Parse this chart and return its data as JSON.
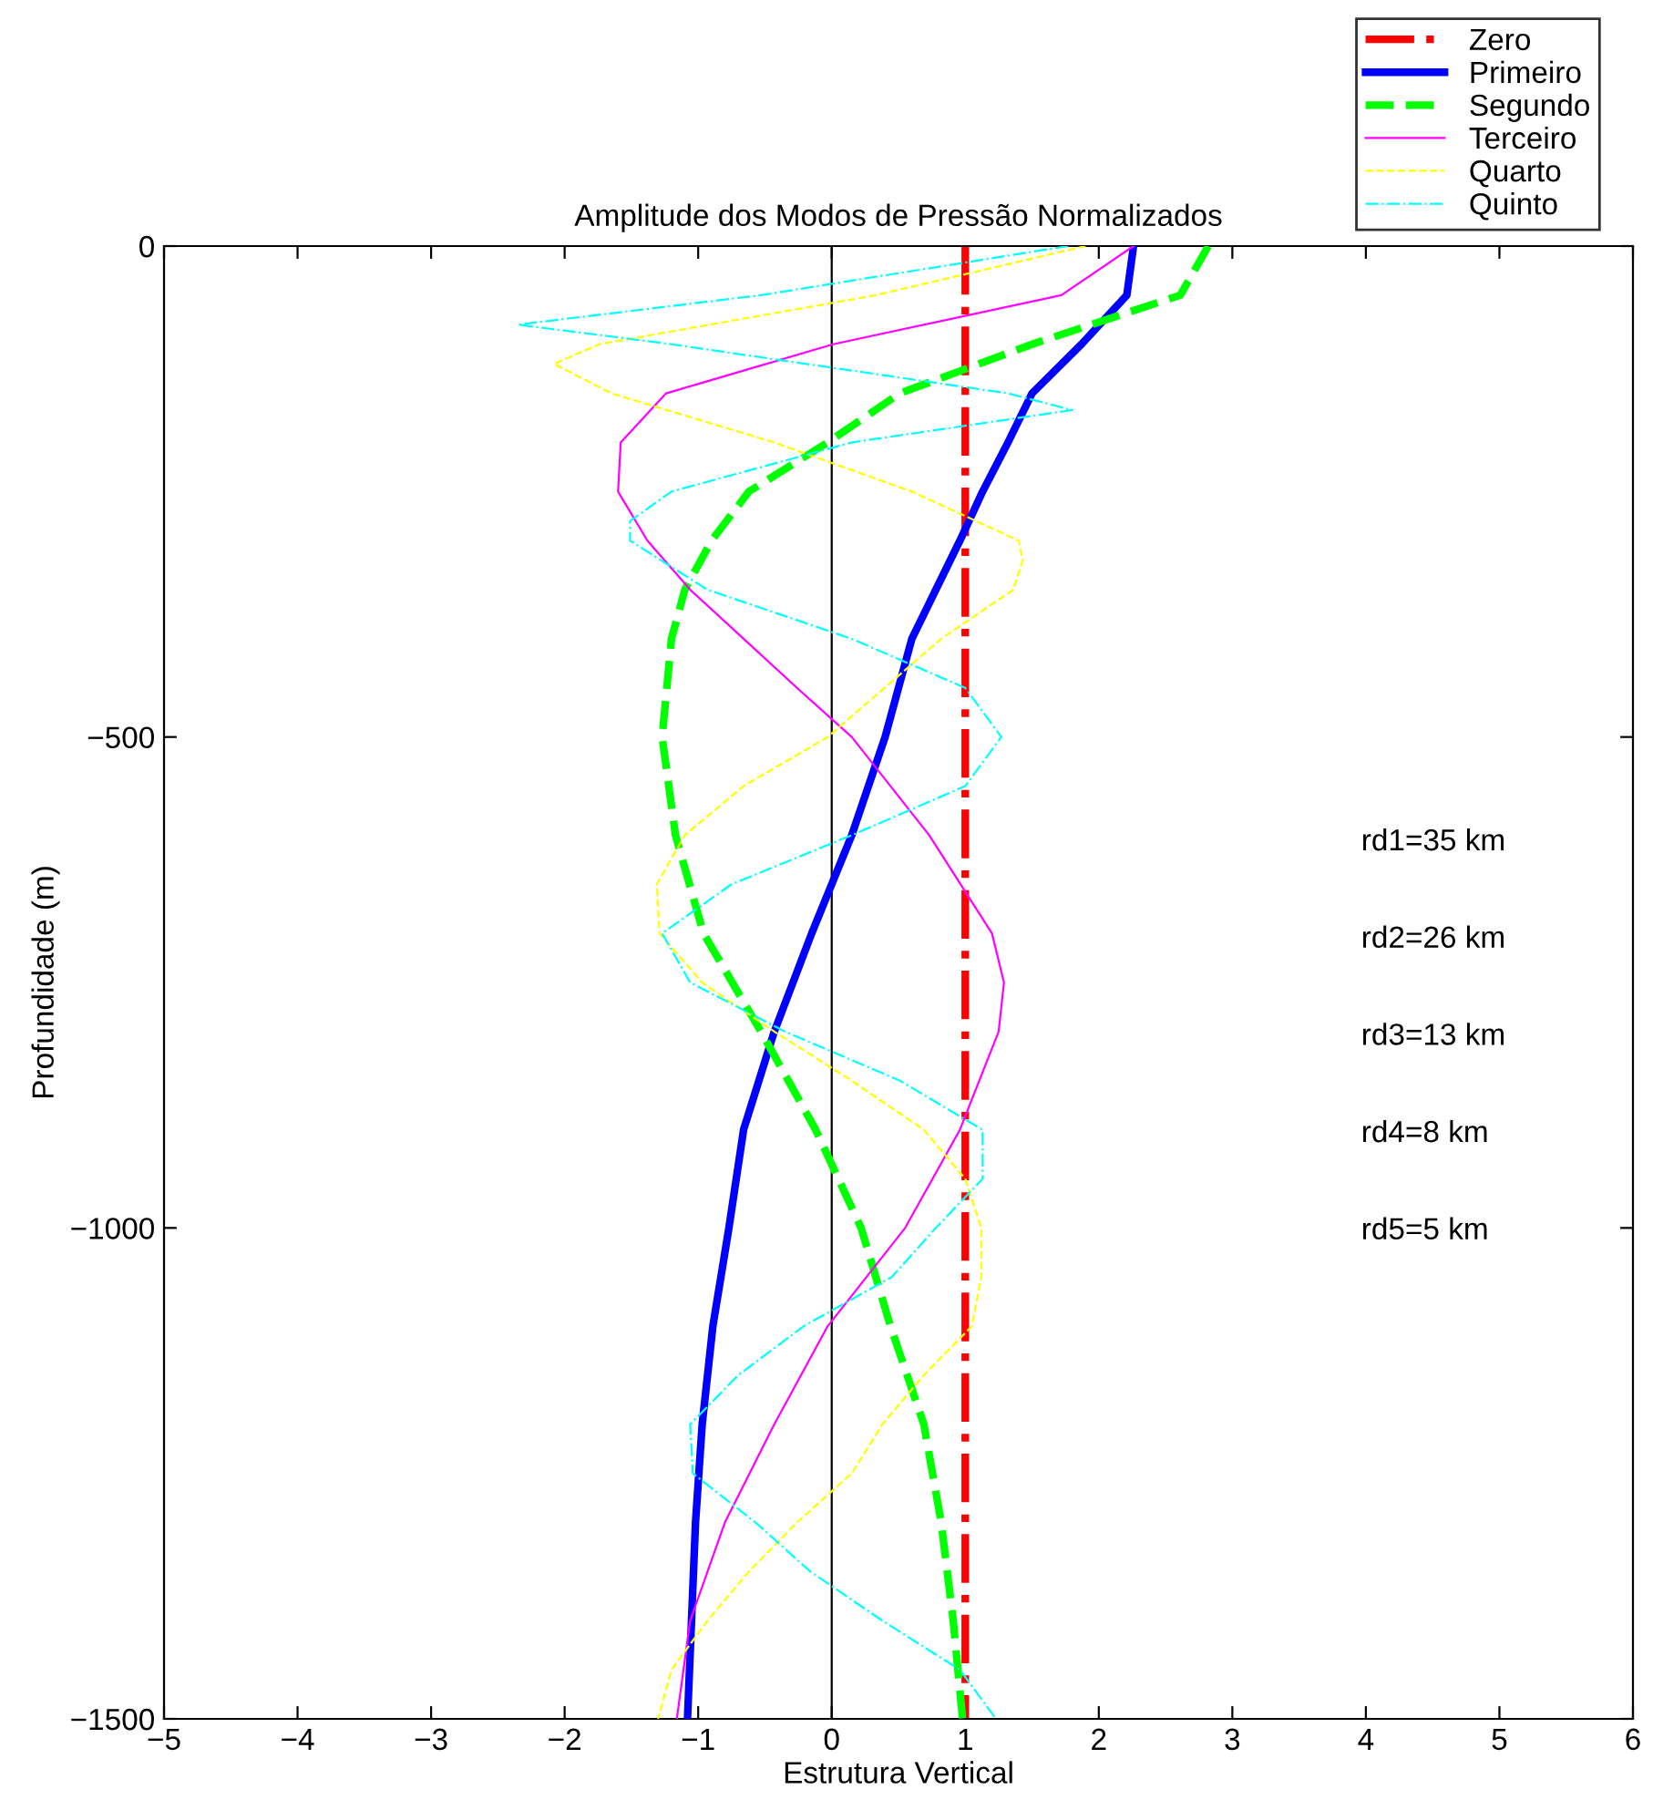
{
  "chart_data": {
    "type": "line",
    "title": "Amplitude dos Modos de Pressão Normalizados",
    "xlabel": "Estrutura Vertical",
    "ylabel": "Profundidade (m)",
    "xlim": [
      -5,
      6
    ],
    "xticks": [
      -5,
      -4,
      -3,
      -2,
      -1,
      0,
      1,
      2,
      3,
      4,
      5,
      6
    ],
    "ylim": [
      -1500,
      0
    ],
    "yticks": [
      -1500,
      -1000,
      -500,
      0
    ],
    "grid": false,
    "legend": "top right",
    "marker": "none",
    "ref_lines": [
      {
        "axis": "x",
        "value": 0,
        "color": "#000000",
        "line_style": "solid"
      }
    ],
    "annotations": [
      "rd1=35 km",
      "rd2=26 km",
      "rd3=13 km",
      "rd4=8 km",
      "rd5=5 km"
    ],
    "series": [
      {
        "name": "Zero",
        "color": "#ff0000",
        "line_style": "dashdot",
        "x": [
          1,
          1
        ],
        "values": [
          0,
          -1500
        ]
      },
      {
        "name": "Primeiro",
        "color": "#0000ff",
        "line_style": "solid",
        "x": [
          2.26,
          2.21,
          1.87,
          1.5,
          1.32,
          1.13,
          0.96,
          0.6,
          0.4,
          0.15,
          0,
          -0.15,
          -0.43,
          -0.66,
          -0.77,
          -0.89,
          -0.97,
          -1.02,
          -1.05,
          -1.08
        ],
        "values": [
          0,
          -50,
          -100,
          -150,
          -200,
          -250,
          -300,
          -400,
          -500,
          -600,
          -650,
          -700,
          -800,
          -900,
          -1000,
          -1100,
          -1200,
          -1300,
          -1400,
          -1500
        ]
      },
      {
        "name": "Segundo",
        "color": "#00ff00",
        "line_style": "dashed",
        "x": [
          2.82,
          2.61,
          1.5,
          0.51,
          -0.03,
          -0.62,
          -0.9,
          -1.1,
          -1.2,
          -1.27,
          -1.17,
          -0.96,
          -0.53,
          -0.12,
          0.22,
          0.44,
          0.69,
          0.82,
          0.91,
          0.98
        ],
        "values": [
          0,
          -50,
          -100,
          -150,
          -200,
          -250,
          -300,
          -350,
          -400,
          -500,
          -600,
          -700,
          -800,
          -900,
          -1000,
          -1100,
          -1200,
          -1300,
          -1400,
          -1500
        ]
      },
      {
        "name": "Terceiro",
        "color": "#ff00ff",
        "line_style": "solid",
        "x": [
          2.26,
          1.72,
          0.01,
          -1.24,
          -1.58,
          -1.6,
          -1.38,
          -1.06,
          -0.66,
          -0.26,
          0.15,
          0.73,
          1.2,
          1.29,
          1.25,
          0.96,
          0.55,
          -0.03,
          -0.43,
          -0.8,
          -1.06,
          -1.16
        ],
        "values": [
          0,
          -50,
          -100,
          -150,
          -200,
          -250,
          -300,
          -350,
          -400,
          -450,
          -500,
          -600,
          -700,
          -750,
          -800,
          -900,
          -1000,
          -1100,
          -1200,
          -1300,
          -1400,
          -1500
        ]
      },
      {
        "name": "Quarto",
        "color": "#ffff00",
        "line_style": "dashed",
        "x": [
          1.9,
          0.33,
          -1.74,
          -2.08,
          -1.65,
          -0.43,
          0.6,
          1.4,
          1.43,
          1.36,
          0.82,
          -0.03,
          -0.66,
          -1.1,
          -1.31,
          -1.29,
          -0.97,
          -0.43,
          0.15,
          0.69,
          1.0,
          1.12,
          1.12,
          1.05,
          0.69,
          0.38,
          0.15,
          -0.26,
          -0.62,
          -0.93,
          -1.2,
          -1.3
        ],
        "values": [
          0,
          -50,
          -100,
          -120,
          -150,
          -200,
          -250,
          -300,
          -320,
          -350,
          -400,
          -500,
          -550,
          -600,
          -650,
          -700,
          -750,
          -800,
          -850,
          -900,
          -950,
          -1000,
          -1050,
          -1100,
          -1150,
          -1200,
          -1250,
          -1300,
          -1350,
          -1400,
          -1450,
          -1500
        ]
      },
      {
        "name": "Quinto",
        "color": "#00ffff",
        "line_style": "dashdot",
        "x": [
          1.77,
          -0.53,
          -2.35,
          -1.2,
          1.32,
          1.8,
          0.15,
          -1.2,
          -1.51,
          -1.51,
          -0.93,
          0.15,
          1.0,
          1.27,
          1.0,
          0.15,
          -0.75,
          -1.27,
          -1.06,
          -0.35,
          0.51,
          1.13,
          1.13,
          0.78,
          0.45,
          -0.21,
          -0.7,
          -1.06,
          -1.04,
          -0.57,
          -0.16,
          0.38,
          0.96,
          1.23
        ],
        "values": [
          0,
          -50,
          -80,
          -100,
          -150,
          -167,
          -200,
          -250,
          -280,
          -300,
          -350,
          -400,
          -450,
          -500,
          -550,
          -600,
          -650,
          -700,
          -750,
          -800,
          -850,
          -900,
          -950,
          -1000,
          -1050,
          -1100,
          -1150,
          -1200,
          -1250,
          -1300,
          -1350,
          -1400,
          -1450,
          -1500
        ]
      }
    ]
  }
}
